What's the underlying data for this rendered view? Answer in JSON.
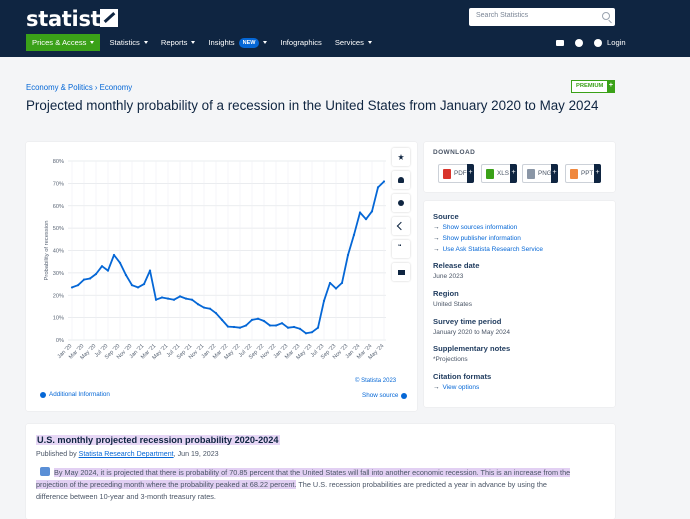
{
  "header": {
    "logo": "statista",
    "search_placeholder": "Search Statistics",
    "nav": [
      {
        "label": "Prices & Access"
      },
      {
        "label": "Statistics"
      },
      {
        "label": "Reports"
      },
      {
        "label": "Insights",
        "badge": "NEW"
      },
      {
        "label": "Infographics"
      },
      {
        "label": "Services"
      }
    ],
    "login": "Login"
  },
  "breadcrumb": "Economy & Politics › Economy",
  "premium_label": "PREMIUM",
  "title": "Projected monthly probability of a recession in the United States from January 2020 to May 2024",
  "chart_data": {
    "type": "line",
    "title": "",
    "xlabel": "",
    "ylabel": "Probability of recession",
    "ylim": [
      0,
      80
    ],
    "yticks": [
      "0%",
      "10%",
      "20%",
      "30%",
      "40%",
      "50%",
      "60%",
      "70%",
      "80%"
    ],
    "xtick_labels": [
      "Jan '20",
      "Mar '20",
      "May '20",
      "Jul '20",
      "Sep '20",
      "Nov '20",
      "Jan '21",
      "Mar '21",
      "May '21",
      "Jul '21",
      "Sep '21",
      "Nov '21",
      "Jan '22",
      "Mar '22",
      "May '22",
      "Jul '22",
      "Sep '22",
      "Nov '22",
      "Jan '23",
      "Mar '23",
      "May '23",
      "Jul '23",
      "Sep '23",
      "Nov '23",
      "Jan '24",
      "Mar '24",
      "May '24"
    ],
    "grid": true,
    "series": [
      {
        "values": [
          23.5,
          24.5,
          27,
          27.5,
          29.5,
          33,
          31,
          38,
          34.5,
          29,
          24.5,
          23.5,
          25,
          31,
          18,
          19,
          18.5,
          18,
          19.5,
          18.5,
          18,
          16,
          14.5,
          14,
          12,
          9,
          6,
          5.8,
          5.5,
          6.5,
          9,
          9.5,
          8.5,
          6.5,
          6.5,
          7.5,
          5.5,
          5.8,
          5,
          3,
          3.5,
          5.5,
          17.5,
          25.5,
          23,
          25.5,
          38,
          47,
          57,
          54,
          57.5,
          68.2,
          70.85
        ]
      }
    ]
  },
  "chart_footer": {
    "copyright": "© Statista 2023",
    "additional_info": "Additional Information",
    "show_source": "Show source"
  },
  "download": {
    "title": "DOWNLOAD",
    "buttons": [
      {
        "label": "PDF",
        "color": "#d9342b"
      },
      {
        "label": "XLS",
        "color": "#3aa118"
      },
      {
        "label": "PNG",
        "color": "#8a96a6"
      },
      {
        "label": "PPT",
        "color": "#f0883e"
      }
    ]
  },
  "source_panel": {
    "source_heading": "Source",
    "show_sources": "Show sources information",
    "show_publisher": "Show publisher information",
    "research_service": "Use Ask Statista Research Service",
    "release_heading": "Release date",
    "release_value": "June 2023",
    "region_heading": "Region",
    "region_value": "United States",
    "survey_heading": "Survey time period",
    "survey_value": "January 2020 to May 2024",
    "supp_heading": "Supplementary notes",
    "supp_value": "*Projections",
    "citation_heading": "Citation formats",
    "citation_link": "View options"
  },
  "description": {
    "title": "U.S. monthly projected recession probability 2020-2024",
    "published_prefix": "Published by",
    "publisher": "Statista Research Department",
    "date": ", Jun 19, 2023",
    "highlight": "By May 2024, it is projected that there is probability of 70.85 percent that the United States will fall into another economic recession. This is an increase from the projection of the preceding month where the probability peaked at 68.22 percent.",
    "rest": " The U.S. recession probabilities are predicted a year in advance by using the difference between 10-year and 3-month treasury rates."
  },
  "colors": {
    "navy": "#0f2541",
    "accent_green": "#3aa118",
    "link_blue": "#0567d6",
    "series": "#0567d6"
  }
}
